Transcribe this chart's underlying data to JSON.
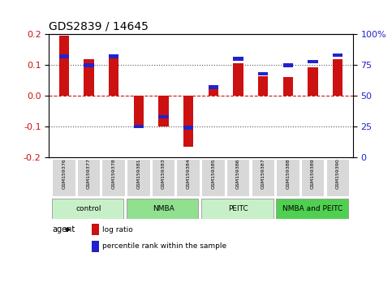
{
  "title": "GDS2839 / 14645",
  "samples": [
    "GSM159376",
    "GSM159377",
    "GSM159378",
    "GSM159381",
    "GSM159383",
    "GSM159384",
    "GSM159385",
    "GSM159386",
    "GSM159387",
    "GSM159388",
    "GSM159389",
    "GSM159390"
  ],
  "log_ratio": [
    0.195,
    0.12,
    0.125,
    -0.1,
    -0.1,
    -0.165,
    0.03,
    0.105,
    0.065,
    0.062,
    0.093,
    0.12
  ],
  "percentile": [
    82,
    75,
    82,
    25,
    33,
    24,
    57,
    80,
    68,
    75,
    78,
    83
  ],
  "groups": [
    {
      "label": "control",
      "start": 0,
      "end": 3,
      "color": "#c8f0c8"
    },
    {
      "label": "NMBA",
      "start": 3,
      "end": 6,
      "color": "#90e090"
    },
    {
      "label": "PEITC",
      "start": 6,
      "end": 9,
      "color": "#c8f0c8"
    },
    {
      "label": "NMBA and PEITC",
      "start": 9,
      "end": 12,
      "color": "#50d050"
    }
  ],
  "bar_color_red": "#cc1111",
  "bar_color_blue": "#2222cc",
  "ylim_left": [
    -0.2,
    0.2
  ],
  "ylim_right": [
    0,
    100
  ],
  "yticks_left": [
    -0.2,
    -0.1,
    0.0,
    0.1,
    0.2
  ],
  "yticks_right": [
    0,
    25,
    50,
    75,
    100
  ],
  "ytick_labels_right": [
    "0",
    "25",
    "50",
    "75",
    "100%"
  ],
  "hline_color_red": "#cc1111",
  "hline_color_dotted": "#555555",
  "bar_width": 0.4
}
